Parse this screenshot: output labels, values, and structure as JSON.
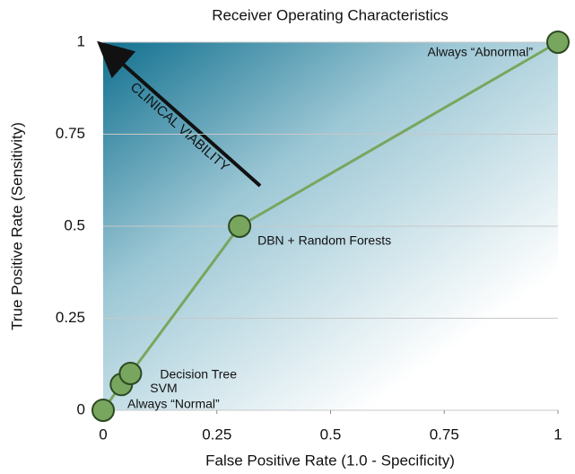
{
  "chart_data": {
    "type": "line",
    "title": "Receiver Operating Characteristics",
    "x_label": "False Positive Rate (1.0 - Specificity)",
    "y_label": "True Positive Rate (Sensitivity)",
    "annotation": "CLINICAL VIABILITY",
    "series": [
      {
        "color": "#79a65f",
        "x": [
          0,
          0.04,
          0.06,
          0.3,
          1
        ],
        "values": [
          0,
          0.07,
          0.1,
          0.5,
          1
        ],
        "point_labels": [
          "Always “Normal”",
          "SVM",
          "Decision Tree",
          "DBN + Random Forests",
          "Always “Abnormal”"
        ]
      }
    ],
    "xlim": [
      0,
      1
    ],
    "ylim": [
      0,
      1
    ],
    "xticks": [
      0,
      0.25,
      0.5,
      0.75,
      1
    ],
    "yticks": [
      0,
      0.25,
      0.5,
      0.75,
      1
    ],
    "grid": true
  }
}
